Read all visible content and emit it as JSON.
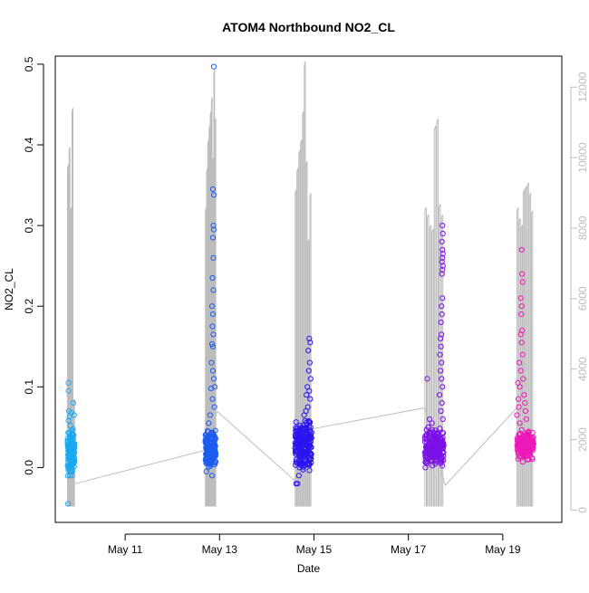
{
  "chart_data": {
    "type": "scatter",
    "title": "ATOM4 Northbound NO2_CL",
    "xlabel": "Date",
    "ylabel": "NO2_CL",
    "x_ticks": [
      {
        "label": "May 11",
        "value": 11.0
      },
      {
        "label": "May 13",
        "value": 13.0
      },
      {
        "label": "May 15",
        "value": 15.0
      },
      {
        "label": "May 17",
        "value": 17.0
      },
      {
        "label": "May 19",
        "value": 19.0
      }
    ],
    "xlim": [
      9.52,
      20.25
    ],
    "ylim": [
      -0.068,
      0.51
    ],
    "y_ticks": [
      {
        "label": "0.0",
        "value": 0.0
      },
      {
        "label": "0.1",
        "value": 0.1
      },
      {
        "label": "0.2",
        "value": 0.2
      },
      {
        "label": "0.3",
        "value": 0.3
      },
      {
        "label": "0.4",
        "value": 0.4
      },
      {
        "label": "0.5",
        "value": 0.5
      }
    ],
    "y2lim": [
      -350,
      12880
    ],
    "y2_ticks": [
      {
        "label": "0",
        "value": 0
      },
      {
        "label": "2000",
        "value": 2000
      },
      {
        "label": "4000",
        "value": 4000
      },
      {
        "label": "6000",
        "value": 6000
      },
      {
        "label": "8000",
        "value": 8000
      },
      {
        "label": "10000",
        "value": 10000
      },
      {
        "label": "12000",
        "value": 12000
      }
    ],
    "grid": false,
    "legend": "none",
    "colors": {
      "ramp": [
        "#1aa8f0",
        "#1c5cf0",
        "#2a14f0",
        "#7a10e6",
        "#b412d6",
        "#ee18b8"
      ],
      "secondary_line": "#bdbdbd"
    },
    "series": [
      {
        "x_range": [
          9.78,
          9.93
        ],
        "color": "#1aa8f0",
        "points": [
          [
            9.8,
            0.105
          ],
          [
            9.8,
            0.095
          ],
          [
            9.81,
            0.07
          ],
          [
            9.82,
            0.063
          ],
          [
            9.8,
            0.058
          ],
          [
            9.84,
            0.052
          ],
          [
            9.86,
            0.068
          ],
          [
            9.79,
            -0.045
          ],
          [
            9.83,
            -0.01
          ],
          [
            9.87,
            0.045
          ],
          [
            9.9,
            0.08
          ],
          [
            9.92,
            0.065
          ],
          [
            9.89,
            0.04
          ]
        ],
        "cloud": {
          "n": 140,
          "ymin": -0.012,
          "ymax": 0.05
        }
      },
      {
        "x_range": [
          12.7,
          12.92
        ],
        "color": "#1c5cf0",
        "points": [
          [
            12.88,
            0.497
          ],
          [
            12.86,
            0.345
          ],
          [
            12.88,
            0.338
          ],
          [
            12.87,
            0.3
          ],
          [
            12.88,
            0.295
          ],
          [
            12.86,
            0.285
          ],
          [
            12.87,
            0.26
          ],
          [
            12.85,
            0.235
          ],
          [
            12.87,
            0.22
          ],
          [
            12.84,
            0.2
          ],
          [
            12.86,
            0.19
          ],
          [
            12.85,
            0.175
          ],
          [
            12.87,
            0.165
          ],
          [
            12.84,
            0.153
          ],
          [
            12.86,
            0.15
          ],
          [
            12.83,
            0.13
          ],
          [
            12.86,
            0.12
          ],
          [
            12.88,
            0.11
          ],
          [
            12.9,
            0.1
          ],
          [
            12.82,
            0.098
          ],
          [
            12.85,
            0.085
          ],
          [
            12.89,
            0.075
          ],
          [
            12.8,
            0.065
          ],
          [
            12.77,
            0.055
          ],
          [
            12.74,
            0.038
          ],
          [
            12.84,
            -0.01
          ],
          [
            12.72,
            -0.005
          ]
        ],
        "cloud": {
          "n": 190,
          "ymin": -0.005,
          "ymax": 0.05
        }
      },
      {
        "x_range": [
          14.6,
          14.95
        ],
        "color": "#2a14f0",
        "points": [
          [
            14.9,
            0.16
          ],
          [
            14.92,
            0.155
          ],
          [
            14.88,
            0.145
          ],
          [
            14.91,
            0.13
          ],
          [
            14.89,
            0.12
          ],
          [
            14.93,
            0.11
          ],
          [
            14.86,
            0.1
          ],
          [
            14.9,
            0.095
          ],
          [
            14.84,
            0.09
          ],
          [
            14.92,
            0.085
          ],
          [
            14.87,
            0.075
          ],
          [
            14.83,
            0.07
          ],
          [
            14.79,
            0.065
          ],
          [
            14.62,
            -0.02
          ],
          [
            14.65,
            -0.02
          ],
          [
            14.68,
            -0.01
          ]
        ],
        "cloud": {
          "n": 230,
          "ymin": -0.005,
          "ymax": 0.06
        }
      },
      {
        "x_range": [
          17.35,
          17.75
        ],
        "color": "#7a10e6",
        "points": [
          [
            17.72,
            0.3
          ],
          [
            17.73,
            0.29
          ],
          [
            17.71,
            0.28
          ],
          [
            17.72,
            0.27
          ],
          [
            17.73,
            0.265
          ],
          [
            17.72,
            0.26
          ],
          [
            17.71,
            0.255
          ],
          [
            17.73,
            0.25
          ],
          [
            17.72,
            0.245
          ],
          [
            17.71,
            0.24
          ],
          [
            17.72,
            0.21
          ],
          [
            17.7,
            0.2
          ],
          [
            17.71,
            0.19
          ],
          [
            17.69,
            0.18
          ],
          [
            17.7,
            0.165
          ],
          [
            17.68,
            0.16
          ],
          [
            17.69,
            0.15
          ],
          [
            17.67,
            0.14
          ],
          [
            17.7,
            0.13
          ],
          [
            17.68,
            0.12
          ],
          [
            17.7,
            0.11
          ],
          [
            17.72,
            0.1
          ],
          [
            17.66,
            0.09
          ],
          [
            17.71,
            0.08
          ],
          [
            17.69,
            0.07
          ],
          [
            17.73,
            0.06
          ],
          [
            17.4,
            0.11
          ],
          [
            17.42,
            0.05
          ],
          [
            17.38,
            0.04
          ],
          [
            17.36,
            0.0
          ],
          [
            17.39,
            0.005
          ],
          [
            17.45,
            0.06
          ],
          [
            17.5,
            0.055
          ]
        ],
        "cloud": {
          "n": 200,
          "ymin": 0.0,
          "ymax": 0.05
        }
      },
      {
        "x_range": [
          19.3,
          19.65
        ],
        "color": "#ee18b8",
        "points": [
          [
            19.4,
            0.27
          ],
          [
            19.41,
            0.24
          ],
          [
            19.42,
            0.23
          ],
          [
            19.38,
            0.21
          ],
          [
            19.4,
            0.2
          ],
          [
            19.39,
            0.19
          ],
          [
            19.41,
            0.17
          ],
          [
            19.38,
            0.165
          ],
          [
            19.4,
            0.155
          ],
          [
            19.42,
            0.14
          ],
          [
            19.35,
            0.13
          ],
          [
            19.38,
            0.12
          ],
          [
            19.43,
            0.11
          ],
          [
            19.32,
            0.105
          ],
          [
            19.36,
            0.1
          ],
          [
            19.45,
            0.09
          ],
          [
            19.33,
            0.085
          ],
          [
            19.47,
            0.08
          ],
          [
            19.34,
            0.075
          ],
          [
            19.48,
            0.07
          ],
          [
            19.3,
            0.065
          ],
          [
            19.5,
            0.06
          ],
          [
            19.36,
            0.055
          ]
        ],
        "cloud": {
          "n": 170,
          "ymin": 0.005,
          "ymax": 0.05
        }
      }
    ],
    "secondary_series": {
      "name": "",
      "spikes": [
        [
          9.78,
          9.94,
          [
            9700,
            10200,
            8500,
            11300,
            3100
          ]
        ],
        [
          12.7,
          12.93,
          [
            8500,
            9600,
            10400,
            10800,
            11200,
            11600,
            9900,
            12400,
            11000
          ]
        ],
        [
          14.6,
          14.95,
          [
            9000,
            9600,
            10100,
            10400,
            11200,
            12600,
            9800,
            7600,
            8900
          ]
        ],
        [
          17.35,
          17.75,
          [
            8500,
            8300,
            8000,
            7900,
            10800,
            11000,
            8600,
            8300
          ]
        ],
        [
          19.3,
          19.65,
          [
            8500,
            8200,
            8000,
            9000,
            9100,
            9200,
            8900,
            8400
          ]
        ]
      ],
      "baseline": 100,
      "connector": [
        [
          9.94,
          750
        ],
        [
          12.7,
          1700
        ],
        [
          12.95,
          2800
        ],
        [
          14.58,
          850
        ],
        [
          14.95,
          2300
        ],
        [
          17.35,
          2900
        ],
        [
          17.78,
          700
        ],
        [
          19.3,
          2900
        ]
      ]
    }
  }
}
